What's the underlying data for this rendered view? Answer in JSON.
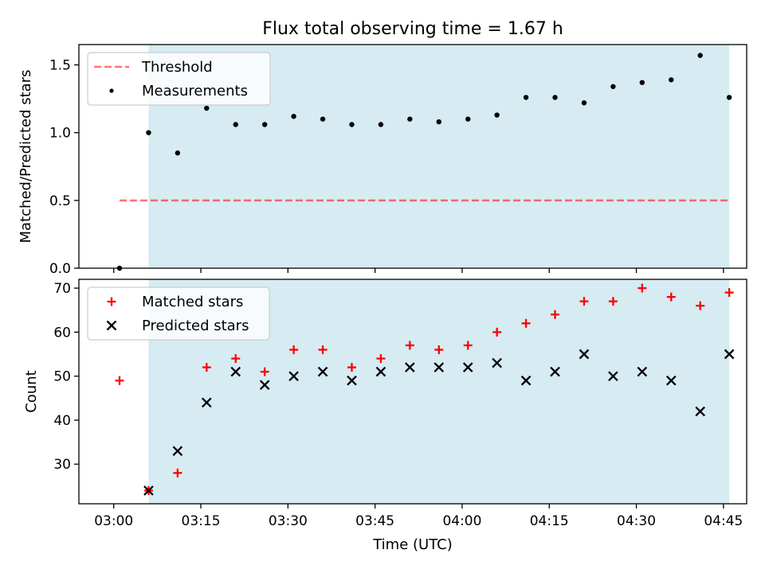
{
  "title": "Flux total observing time = 1.67 h",
  "xlabel": "Time (UTC)",
  "colors": {
    "shade": "#add8e6",
    "threshold": "#ff0000",
    "measurement": "#000000",
    "matched": "#ff0000",
    "predicted": "#000000"
  },
  "chart_data": [
    {
      "type": "scatter",
      "title": "Flux total observing time = 1.67 h",
      "xlabel": "",
      "ylabel": "Matched/Predicted stars",
      "xlim": [
        "02:54",
        "04:49"
      ],
      "ylim": [
        0,
        1.65
      ],
      "yticks": [
        0.0,
        0.5,
        1.0,
        1.5
      ],
      "ytick_labels": [
        "0.0",
        "0.5",
        "1.0",
        "1.5"
      ],
      "xticks": [
        "03:00",
        "03:15",
        "03:30",
        "03:45",
        "04:00",
        "04:15",
        "04:30",
        "04:45"
      ],
      "xtick_labels": [
        "",
        "",
        "",
        "",
        "",
        "",
        "",
        ""
      ],
      "shaded_span": [
        "03:06",
        "04:46"
      ],
      "legend_position": "upper left",
      "threshold": {
        "name": "Threshold",
        "value": 0.5,
        "x_range": [
          "03:01",
          "04:46"
        ],
        "style": "dashed"
      },
      "series": [
        {
          "name": "Measurements",
          "marker": "dot",
          "x": [
            "03:01",
            "03:06",
            "03:11",
            "03:16",
            "03:21",
            "03:26",
            "03:31",
            "03:36",
            "03:41",
            "03:46",
            "03:51",
            "03:56",
            "04:01",
            "04:06",
            "04:11",
            "04:16",
            "04:21",
            "04:26",
            "04:31",
            "04:36",
            "04:41",
            "04:46"
          ],
          "y": [
            0.0,
            1.0,
            0.85,
            1.18,
            1.06,
            1.06,
            1.12,
            1.1,
            1.06,
            1.06,
            1.1,
            1.08,
            1.1,
            1.13,
            1.26,
            1.26,
            1.22,
            1.34,
            1.37,
            1.39,
            1.57,
            1.26
          ]
        }
      ]
    },
    {
      "type": "scatter",
      "title": "",
      "xlabel": "Time (UTC)",
      "ylabel": "Count",
      "xlim": [
        "02:54",
        "04:49"
      ],
      "ylim": [
        21,
        72
      ],
      "yticks": [
        30,
        40,
        50,
        60,
        70
      ],
      "ytick_labels": [
        "30",
        "40",
        "50",
        "60",
        "70"
      ],
      "xticks": [
        "03:00",
        "03:15",
        "03:30",
        "03:45",
        "04:00",
        "04:15",
        "04:30",
        "04:45"
      ],
      "xtick_labels": [
        "03:00",
        "03:15",
        "03:30",
        "03:45",
        "04:00",
        "04:15",
        "04:30",
        "04:45"
      ],
      "shaded_span": [
        "03:06",
        "04:46"
      ],
      "legend_position": "upper left",
      "series": [
        {
          "name": "Matched stars",
          "marker": "plus",
          "x": [
            "03:01",
            "03:06",
            "03:11",
            "03:16",
            "03:21",
            "03:26",
            "03:31",
            "03:36",
            "03:41",
            "03:46",
            "03:51",
            "03:56",
            "04:01",
            "04:06",
            "04:11",
            "04:16",
            "04:21",
            "04:26",
            "04:31",
            "04:36",
            "04:41",
            "04:46"
          ],
          "y": [
            49,
            24,
            28,
            52,
            54,
            51,
            56,
            56,
            52,
            54,
            57,
            56,
            57,
            60,
            62,
            64,
            67,
            67,
            70,
            68,
            66,
            69
          ]
        },
        {
          "name": "Predicted stars",
          "marker": "x",
          "x": [
            "03:06",
            "03:11",
            "03:16",
            "03:21",
            "03:26",
            "03:31",
            "03:36",
            "03:41",
            "03:46",
            "03:51",
            "03:56",
            "04:01",
            "04:06",
            "04:11",
            "04:16",
            "04:21",
            "04:26",
            "04:31",
            "04:36",
            "04:41",
            "04:46"
          ],
          "y": [
            24,
            33,
            44,
            51,
            48,
            50,
            51,
            49,
            51,
            52,
            52,
            52,
            53,
            49,
            51,
            55,
            50,
            51,
            49,
            42,
            55
          ]
        }
      ]
    }
  ]
}
